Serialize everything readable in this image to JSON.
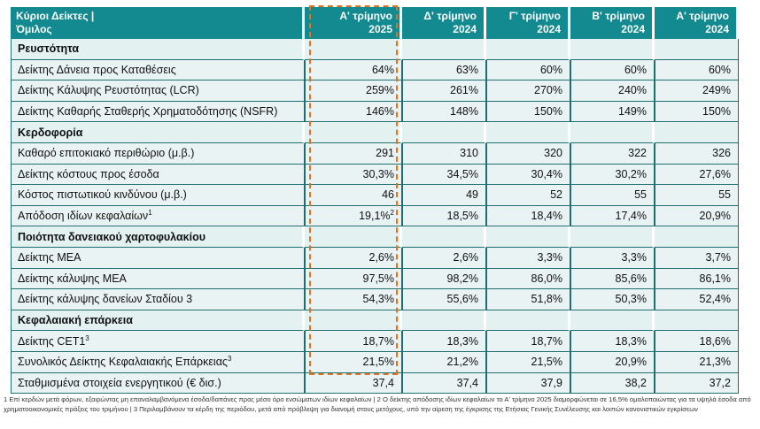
{
  "header": {
    "title_line1": "Κύριοι Δείκτες |",
    "title_line2": "Όμιλος",
    "columns": [
      {
        "line1": "Α' τρίμηνο",
        "line2": "2025"
      },
      {
        "line1": "Δ' τρίμηνο",
        "line2": "2024"
      },
      {
        "line1": "Γ' τρίμηνο",
        "line2": "2024"
      },
      {
        "line1": "Β' τρίμηνο",
        "line2": "2024"
      },
      {
        "line1": "Α' τρίμηνο",
        "line2": "2024"
      }
    ]
  },
  "sections": [
    {
      "title": "Ρευστότητα",
      "rows": [
        {
          "label": "Δείκτης Δάνεια προς Καταθέσεις",
          "values": [
            "64%",
            "63%",
            "60%",
            "60%",
            "60%"
          ]
        },
        {
          "label": "Δείκτης Κάλυψης Ρευστότητας (LCR)",
          "values": [
            "259%",
            "261%",
            "270%",
            "240%",
            "249%"
          ]
        },
        {
          "label": "Δείκτης Καθαρής Σταθερής Χρηματοδότησης (NSFR)",
          "values": [
            "146%",
            "148%",
            "150%",
            "149%",
            "150%"
          ]
        }
      ]
    },
    {
      "title": "Κερδοφορία",
      "rows": [
        {
          "label": "Καθαρό επιτοκιακό περιθώριο (μ.β.)",
          "values": [
            "291",
            "310",
            "320",
            "322",
            "326"
          ]
        },
        {
          "label": "Δείκτης κόστους προς έσοδα",
          "values": [
            "30,3%",
            "34,5%",
            "30,4%",
            "30,2%",
            "27,6%"
          ]
        },
        {
          "label": "Κόστος πιστωτικού κινδύνου (μ.β.)",
          "values": [
            "46",
            "49",
            "52",
            "55",
            "55"
          ]
        },
        {
          "label": "Απόδοση ιδίων κεφαλαίων",
          "label_sup": "1",
          "values": [
            "19,1%",
            "18,5%",
            "18,4%",
            "17,4%",
            "20,9%"
          ],
          "first_sup": "2"
        }
      ]
    },
    {
      "title": "Ποιότητα δανειακού χαρτοφυλακίου",
      "rows": [
        {
          "label": "Δείκτης ΜΕΑ",
          "values": [
            "2,6%",
            "2,6%",
            "3,3%",
            "3,3%",
            "3,7%"
          ]
        },
        {
          "label": "Δείκτης κάλυψης ΜΕΑ",
          "values": [
            "97,5%",
            "98,2%",
            "86,0%",
            "85,6%",
            "86,1%"
          ]
        },
        {
          "label": "Δείκτης κάλυψης δανείων Σταδίου 3",
          "values": [
            "54,3%",
            "55,6%",
            "51,8%",
            "50,3%",
            "52,4%"
          ]
        }
      ]
    },
    {
      "title": "Κεφαλαιακή επάρκεια",
      "rows": [
        {
          "label": "Δείκτης CET1",
          "label_sup": "3",
          "values": [
            "18,7%",
            "18,3%",
            "18,7%",
            "18,3%",
            "18,6%"
          ]
        },
        {
          "label": "Συνολικός Δείκτης Κεφαλαιακής Επάρκειας",
          "label_sup": "3",
          "values": [
            "21,5%",
            "21,2%",
            "21,5%",
            "20,9%",
            "21,3%"
          ]
        },
        {
          "label": "Σταθμισμένα στοιχεία ενεργητικού (€ δισ.)",
          "values": [
            "37,4",
            "37,4",
            "37,9",
            "38,2",
            "37,2"
          ]
        }
      ]
    }
  ],
  "footnote": "1 Επί κερδών μετά φόρων, εξαιρώντας μη επαναλαμβανόμενα έσοδα/δαπάνες προς μέσο όρο ενσώματων ιδίων κεφαλαίων | 2 Ο δείκτης απόδοσης ιδίων κεφαλαίων το Α' τρίμηνο 2025 διαμορφώνεται σε 16,5% ομαλοποιώντας για τα υψηλά έσοδα από χρηματοοικονομικές πράξεις του τριμήνου | 3 Περιλαμβάνουν τα κέρδη της περιόδου, μετά από πρόβλεψη για διανομή στους μετόχους, υπό την αίρεση της έγκρισης της Ετήσιας Γενικής Συνέλευσης και λοιπών κανονιστικών εγκρίσεων",
  "colors": {
    "header_bg": "#128a8f",
    "row_bg": "#e9f3f3",
    "highlight": "#e0731e"
  }
}
